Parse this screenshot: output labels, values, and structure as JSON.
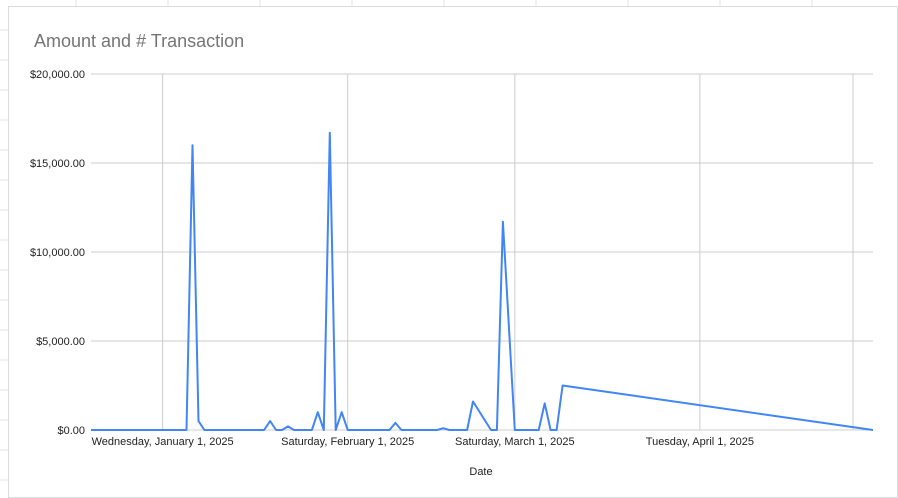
{
  "chart_data": {
    "type": "line",
    "title": "Amount and # Transaction",
    "xlabel": "Date",
    "ylabel": "",
    "ylim": [
      0,
      20000
    ],
    "y_ticks": [
      "$0.00",
      "$5,000.00",
      "$10,000.00",
      "$15,000.00",
      "$20,000.00"
    ],
    "y_tick_values": [
      0,
      5000,
      10000,
      15000,
      20000
    ],
    "xlim": [
      "2024-12-20",
      "2025-04-30"
    ],
    "x_ticks": [
      {
        "date": "2025-01-01",
        "label": "Wednesday, January 1, 2025"
      },
      {
        "date": "2025-02-01",
        "label": "Saturday, February 1, 2025"
      },
      {
        "date": "2025-03-01",
        "label": "Saturday, March 1, 2025"
      },
      {
        "date": "2025-04-01",
        "label": "Tuesday, April 1, 2025"
      }
    ],
    "grid": true,
    "legend": "none",
    "series": [
      {
        "color": "#4285f4",
        "x": [
          "2024-12-20",
          "2025-01-05",
          "2025-01-06",
          "2025-01-07",
          "2025-01-08",
          "2025-01-18",
          "2025-01-19",
          "2025-01-20",
          "2025-01-21",
          "2025-01-22",
          "2025-01-23",
          "2025-01-25",
          "2025-01-26",
          "2025-01-27",
          "2025-01-28",
          "2025-01-29",
          "2025-01-30",
          "2025-01-31",
          "2025-02-01",
          "2025-02-02",
          "2025-02-03",
          "2025-02-04",
          "2025-02-05",
          "2025-02-08",
          "2025-02-09",
          "2025-02-10",
          "2025-02-16",
          "2025-02-17",
          "2025-02-18",
          "2025-02-20",
          "2025-02-21",
          "2025-02-22",
          "2025-02-25",
          "2025-02-26",
          "2025-02-27",
          "2025-03-01",
          "2025-03-03",
          "2025-03-05",
          "2025-03-06",
          "2025-03-07",
          "2025-03-08",
          "2025-03-09",
          "2025-04-30"
        ],
        "y": [
          0,
          0,
          16000,
          500,
          0,
          0,
          500,
          0,
          0,
          200,
          0,
          0,
          0,
          1000,
          0,
          16700,
          0,
          1000,
          0,
          0,
          0,
          0,
          0,
          0,
          400,
          0,
          0,
          100,
          0,
          0,
          0,
          1600,
          0,
          0,
          11700,
          0,
          0,
          0,
          1500,
          0,
          0,
          2500,
          0
        ]
      }
    ]
  }
}
